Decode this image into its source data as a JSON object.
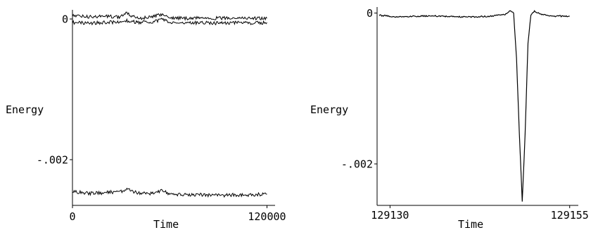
{
  "chart_data": [
    {
      "type": "line",
      "xlabel": "Time",
      "ylabel": "Energy",
      "xlim": [
        0,
        125000
      ],
      "ylim": [
        -0.00265,
        0.00013
      ],
      "x_ticks": [
        {
          "value": 0,
          "label": "0"
        },
        {
          "value": 120000,
          "label": "120000"
        }
      ],
      "y_ticks": [
        {
          "value": 0,
          "label": "0"
        },
        {
          "value": -0.002,
          "label": "-.002"
        }
      ],
      "series": [
        {
          "x": [
            0,
            10000,
            20000,
            30000,
            33000,
            40000,
            50000,
            55000,
            60000,
            70000,
            80000,
            90000,
            100000,
            110000,
            120000
          ],
          "y": [
            5e-05,
            3e-05,
            4e-05,
            3e-05,
            8e-05,
            1e-05,
            3e-05,
            7e-05,
            2e-05,
            1e-05,
            2e-05,
            1e-05,
            2e-05,
            1e-05,
            1e-05
          ]
        },
        {
          "x": [
            0,
            10000,
            20000,
            30000,
            33000,
            40000,
            50000,
            55000,
            60000,
            70000,
            80000,
            90000,
            100000,
            110000,
            120000
          ],
          "y": [
            -5e-05,
            -6e-05,
            -5e-05,
            -4e-05,
            -2e-05,
            -5e-05,
            -4e-05,
            -1e-05,
            -5e-05,
            -6e-05,
            -5e-05,
            -6e-05,
            -5e-05,
            -6e-05,
            -5e-05
          ]
        },
        {
          "x": [
            0,
            10000,
            20000,
            30000,
            33000,
            40000,
            50000,
            55000,
            60000,
            70000,
            80000,
            90000,
            100000,
            110000,
            120000
          ],
          "y": [
            -0.00245,
            -0.00248,
            -0.00247,
            -0.00245,
            -0.00242,
            -0.00247,
            -0.00248,
            -0.00244,
            -0.00249,
            -0.0025,
            -0.0025,
            -0.00251,
            -0.0025,
            -0.0025,
            -0.00249
          ]
        }
      ]
    },
    {
      "type": "line",
      "xlabel": "Time",
      "ylabel": "Energy",
      "xlim": [
        129128.2,
        129156.2
      ],
      "ylim": [
        -0.00255,
        8e-05
      ],
      "x_ticks": [
        {
          "value": 129130,
          "label": "129130"
        },
        {
          "value": 129155,
          "label": "129155"
        }
      ],
      "y_ticks": [
        {
          "value": 0,
          "label": "0"
        },
        {
          "value": -0.002,
          "label": "-.002"
        }
      ],
      "series": [
        {
          "x": [
            129128.5,
            129131,
            129134,
            129137,
            129140,
            129142,
            129144,
            129146,
            129146.7,
            129147.2,
            129147.6,
            129148.0,
            129148.4,
            129148.8,
            129149.2,
            129149.6,
            129150.1,
            129151,
            129153,
            129155
          ],
          "y": [
            -3e-05,
            -5e-05,
            -4e-05,
            -4e-05,
            -5e-05,
            -5e-05,
            -4e-05,
            -2e-05,
            3e-05,
            0.0,
            -0.0006,
            -0.0016,
            -0.0025,
            -0.0016,
            -0.0004,
            -2e-05,
            3e-05,
            -2e-05,
            -4e-05,
            -4e-05
          ]
        }
      ]
    }
  ]
}
